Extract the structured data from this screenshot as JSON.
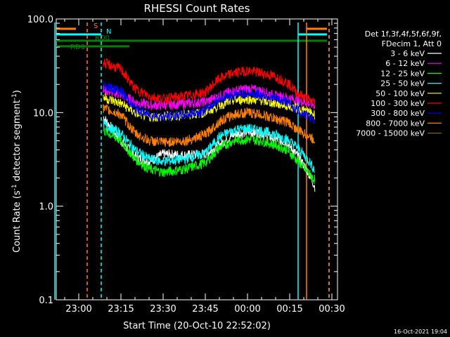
{
  "chart_data": {
    "type": "line",
    "title": "RHESSI Count Rates",
    "xlabel": "Start Time (20-Oct-10 22:52:02)",
    "ylabel": "Count Rate (s",
    "ylabel_sup1": "-1",
    "ylabel_mid": " detector segment",
    "ylabel_sup2": "-1",
    "ylabel_end": ")",
    "yscale": "log",
    "ylim": [
      0.1,
      100
    ],
    "xlim_minutes_after_2300": [
      -8,
      32
    ],
    "x_ticks": [
      {
        "m": 0,
        "label": "23:00"
      },
      {
        "m": 15,
        "label": "23:15"
      },
      {
        "m": 30,
        "label": "23:30"
      },
      {
        "m": 45,
        "label": "23:45"
      },
      {
        "m": 60,
        "label": "00:00"
      },
      {
        "m": 75,
        "label": "00:15"
      },
      {
        "m": 90,
        "label": "00:30"
      }
    ],
    "y_ticks": [
      {
        "v": 100,
        "label": "100.0"
      },
      {
        "v": 10,
        "label": "10.0"
      },
      {
        "v": 1,
        "label": "1.0"
      },
      {
        "v": 0.1,
        "label": "0.1"
      }
    ],
    "legend_header": [
      "Det 1f,3f,4f,5f,6f,9f,",
      "FDecim 1, Att 0"
    ],
    "series": [
      {
        "name": "3 - 6 keV",
        "color": "#ffffff",
        "values": [
          [
            8.7,
            9.0
          ],
          [
            15,
            5.0
          ],
          [
            20,
            3.4
          ],
          [
            25,
            3.0
          ],
          [
            30,
            3.6
          ],
          [
            38,
            3.5
          ],
          [
            45,
            3.6
          ],
          [
            50,
            4.5
          ],
          [
            55,
            5.8
          ],
          [
            60,
            6.2
          ],
          [
            65,
            6.0
          ],
          [
            70,
            5.2
          ],
          [
            74,
            4.8
          ],
          [
            78,
            3.4
          ],
          [
            82,
            2.2
          ],
          [
            84,
            1.6
          ]
        ]
      },
      {
        "name": "6 - 12 keV",
        "color": "#ff00ff",
        "values": [
          [
            8.7,
            17.5
          ],
          [
            15,
            15.5
          ],
          [
            20,
            13.0
          ],
          [
            25,
            12.0
          ],
          [
            30,
            12.0
          ],
          [
            38,
            12.5
          ],
          [
            45,
            13.0
          ],
          [
            50,
            15.0
          ],
          [
            55,
            17.0
          ],
          [
            60,
            18.0
          ],
          [
            65,
            17.0
          ],
          [
            70,
            15.0
          ],
          [
            74,
            14.5
          ],
          [
            78,
            13.5
          ],
          [
            82,
            12.5
          ],
          [
            84,
            12.0
          ]
        ]
      },
      {
        "name": "12 - 25 keV",
        "color": "#00ff00",
        "values": [
          [
            8.7,
            6.5
          ],
          [
            15,
            5.0
          ],
          [
            20,
            3.2
          ],
          [
            25,
            2.5
          ],
          [
            30,
            2.3
          ],
          [
            38,
            2.5
          ],
          [
            45,
            2.9
          ],
          [
            50,
            4.2
          ],
          [
            55,
            5.0
          ],
          [
            60,
            5.2
          ],
          [
            65,
            5.0
          ],
          [
            70,
            4.5
          ],
          [
            74,
            4.0
          ],
          [
            78,
            3.0
          ],
          [
            82,
            2.2
          ],
          [
            84,
            1.9
          ]
        ]
      },
      {
        "name": "25 - 50 keV",
        "color": "#00ffff",
        "values": [
          [
            8.7,
            7.5
          ],
          [
            15,
            6.0
          ],
          [
            20,
            4.0
          ],
          [
            25,
            3.2
          ],
          [
            30,
            3.0
          ],
          [
            38,
            3.2
          ],
          [
            45,
            3.7
          ],
          [
            50,
            5.5
          ],
          [
            55,
            6.5
          ],
          [
            60,
            6.8
          ],
          [
            65,
            6.4
          ],
          [
            70,
            5.8
          ],
          [
            74,
            5.2
          ],
          [
            78,
            4.2
          ],
          [
            82,
            3.0
          ],
          [
            84,
            2.4
          ]
        ]
      },
      {
        "name": "50 - 100 keV",
        "color": "#ffff00",
        "values": [
          [
            8.7,
            14.5
          ],
          [
            15,
            12.5
          ],
          [
            20,
            10.0
          ],
          [
            25,
            9.0
          ],
          [
            30,
            9.0
          ],
          [
            38,
            9.5
          ],
          [
            45,
            10.0
          ],
          [
            50,
            12.0
          ],
          [
            55,
            13.5
          ],
          [
            60,
            14.0
          ],
          [
            65,
            13.5
          ],
          [
            70,
            12.5
          ],
          [
            74,
            12.0
          ],
          [
            78,
            11.0
          ],
          [
            82,
            10.0
          ],
          [
            84,
            9.5
          ]
        ]
      },
      {
        "name": "100 - 300 keV",
        "color": "#ff0000",
        "values": [
          [
            8.7,
            34.0
          ],
          [
            15,
            29.0
          ],
          [
            20,
            18.0
          ],
          [
            25,
            15.0
          ],
          [
            30,
            14.0
          ],
          [
            38,
            15.0
          ],
          [
            45,
            16.5
          ],
          [
            50,
            23.0
          ],
          [
            55,
            26.5
          ],
          [
            60,
            28.0
          ],
          [
            65,
            26.5
          ],
          [
            70,
            24.0
          ],
          [
            74,
            21.0
          ],
          [
            78,
            16.0
          ],
          [
            82,
            13.5
          ],
          [
            84,
            13.0
          ]
        ]
      },
      {
        "name": "300 - 800 keV",
        "color": "#0000ff",
        "values": [
          [
            8.7,
            19.5
          ],
          [
            15,
            17.0
          ],
          [
            20,
            11.0
          ],
          [
            25,
            9.5
          ],
          [
            30,
            9.0
          ],
          [
            38,
            9.5
          ],
          [
            45,
            10.5
          ],
          [
            50,
            14.0
          ],
          [
            55,
            15.5
          ],
          [
            60,
            16.0
          ],
          [
            65,
            15.5
          ],
          [
            70,
            14.0
          ],
          [
            74,
            13.0
          ],
          [
            78,
            10.5
          ],
          [
            82,
            9.0
          ],
          [
            84,
            8.5
          ]
        ]
      },
      {
        "name": "800 - 7000 keV",
        "color": "#ff8000",
        "values": [
          [
            8.7,
            11.0
          ],
          [
            15,
            9.5
          ],
          [
            20,
            6.0
          ],
          [
            25,
            5.0
          ],
          [
            30,
            4.8
          ],
          [
            38,
            5.0
          ],
          [
            45,
            5.8
          ],
          [
            50,
            8.0
          ],
          [
            55,
            9.5
          ],
          [
            60,
            10.0
          ],
          [
            65,
            9.5
          ],
          [
            70,
            8.5
          ],
          [
            74,
            8.0
          ],
          [
            78,
            6.5
          ],
          [
            82,
            5.5
          ],
          [
            84,
            5.0
          ]
        ]
      },
      {
        "name": "7000 - 15000 keV",
        "color": "#806000",
        "values": []
      }
    ],
    "attenuator_bars": [
      {
        "label": "S",
        "color": "#ff8000",
        "segments": [
          [
            -8,
            -1
          ],
          [
            81,
            90
          ]
        ]
      },
      {
        "label": "N",
        "color": "#00ffff",
        "segments": [
          [
            -8,
            8
          ],
          [
            78,
            90
          ]
        ]
      },
      {
        "label": "RD0",
        "color": "#008000",
        "segments": [
          [
            -8,
            18
          ],
          [
            18,
            40
          ],
          [
            40,
            65
          ],
          [
            65,
            90
          ]
        ]
      },
      {
        "label": "RD6",
        "color": "#008000",
        "segments": [
          [
            -8,
            18
          ]
        ]
      }
    ],
    "vertical_lines": [
      {
        "m": -8.5,
        "color": "#00ffff",
        "style": "solid"
      },
      {
        "m": 3,
        "color": "#ff8000",
        "style": "dashed"
      },
      {
        "m": 8,
        "color": "#00ffff",
        "style": "dashed"
      },
      {
        "m": 78,
        "color": "#00ffff",
        "style": "solid"
      },
      {
        "m": 81,
        "color": "#ff8000",
        "style": "solid"
      },
      {
        "m": 89,
        "color": "#00ffff",
        "style": "dashed"
      },
      {
        "m": 89,
        "color": "#ff8000",
        "style": "dashed"
      }
    ]
  },
  "footer_timestamp": "16-Oct-2021 19:04"
}
